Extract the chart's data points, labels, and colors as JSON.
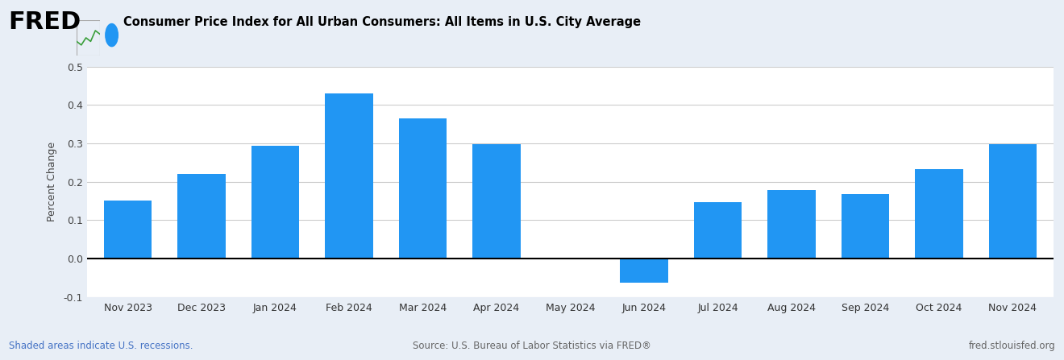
{
  "categories": [
    "Nov 2023",
    "Dec 2023",
    "Jan 2024",
    "Feb 2024",
    "Mar 2024",
    "Apr 2024",
    "May 2024",
    "Jun 2024",
    "Jul 2024",
    "Aug 2024",
    "Sep 2024",
    "Oct 2024",
    "Nov 2024"
  ],
  "values": [
    0.152,
    0.22,
    0.293,
    0.431,
    0.366,
    0.299,
    0.002,
    -0.062,
    0.148,
    0.178,
    0.168,
    0.232,
    0.298
  ],
  "bar_color": "#2196F3",
  "ylabel": "Percent Change",
  "ylim": [
    -0.1,
    0.5
  ],
  "yticks": [
    -0.1,
    0.0,
    0.1,
    0.2,
    0.3,
    0.4,
    0.5
  ],
  "background_color": "#E8EEF6",
  "chart_bg_color": "#FFFFFF",
  "legend_label": "Consumer Price Index for All Urban Consumers: All Items in U.S. City Average",
  "legend_dot_color": "#2196F3",
  "footer_left": "Shaded areas indicate U.S. recessions.",
  "footer_center": "Source: U.S. Bureau of Labor Statistics via FRED®",
  "footer_right": "fred.stlouisfed.org",
  "footer_left_color": "#4472C4",
  "footer_other_color": "#666666",
  "grid_color": "#CCCCCC",
  "zero_line_color": "#000000",
  "legend_fontsize": 10.5,
  "axis_label_fontsize": 9,
  "tick_label_fontsize": 9,
  "footer_fontsize": 8.5,
  "fred_fontsize": 22
}
